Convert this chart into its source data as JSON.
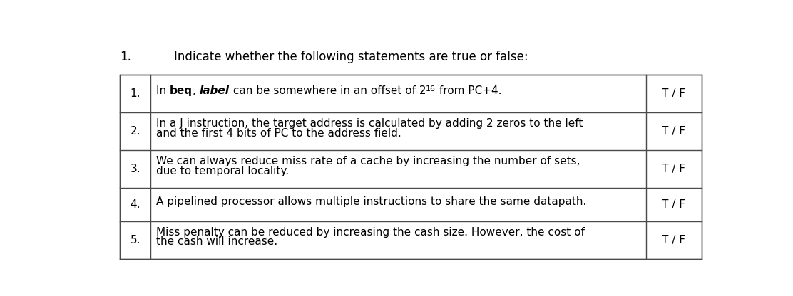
{
  "title_number": "1.",
  "title_text": "Indicate whether the following statements are true or false:",
  "background_color": "#ffffff",
  "border_color": "#4a4a4a",
  "text_color": "#000000",
  "rows": [
    {
      "num": "1.",
      "lines": [
        [
          {
            "text": "In ",
            "bold": false,
            "italic": false,
            "sup": false
          },
          {
            "text": "beq",
            "bold": true,
            "italic": false,
            "sup": false
          },
          {
            "text": ", ",
            "bold": false,
            "italic": false,
            "sup": false
          },
          {
            "text": "label",
            "bold": true,
            "italic": true,
            "sup": false
          },
          {
            "text": " can be somewhere in an offset of 2",
            "bold": false,
            "italic": false,
            "sup": false
          },
          {
            "text": "16",
            "bold": false,
            "italic": false,
            "sup": true
          },
          {
            "text": " from PC+4.",
            "bold": false,
            "italic": false,
            "sup": false
          }
        ]
      ],
      "tf": "T / F",
      "n_lines": 1
    },
    {
      "num": "2.",
      "lines": [
        [
          {
            "text": "In a J instruction, the target address is calculated by adding 2 zeros to the left",
            "bold": false,
            "italic": false,
            "sup": false
          }
        ],
        [
          {
            "text": "and the first 4 bits of PC to the address field.",
            "bold": false,
            "italic": false,
            "sup": false
          }
        ]
      ],
      "tf": "T / F",
      "n_lines": 2
    },
    {
      "num": "3.",
      "lines": [
        [
          {
            "text": "We can always reduce miss rate of a cache by increasing the number of sets,",
            "bold": false,
            "italic": false,
            "sup": false
          }
        ],
        [
          {
            "text": "due to temporal locality.",
            "bold": false,
            "italic": false,
            "sup": false
          }
        ]
      ],
      "tf": "T / F",
      "n_lines": 2
    },
    {
      "num": "4.",
      "lines": [
        [
          {
            "text": "A pipelined processor allows multiple instructions to share the same datapath.",
            "bold": false,
            "italic": false,
            "sup": false
          }
        ]
      ],
      "tf": "T / F",
      "n_lines": 1
    },
    {
      "num": "5.",
      "lines": [
        [
          {
            "text": "Miss penalty can be reduced by increasing the cash size. However, the cost of",
            "bold": false,
            "italic": false,
            "sup": false
          }
        ],
        [
          {
            "text": "the cash will increase.",
            "bold": false,
            "italic": false,
            "sup": false
          }
        ]
      ],
      "tf": "T / F",
      "n_lines": 2
    }
  ],
  "font_size": 11.0,
  "title_font_size": 12.0,
  "fig_width": 11.12,
  "fig_height": 4.16,
  "dpi": 100
}
